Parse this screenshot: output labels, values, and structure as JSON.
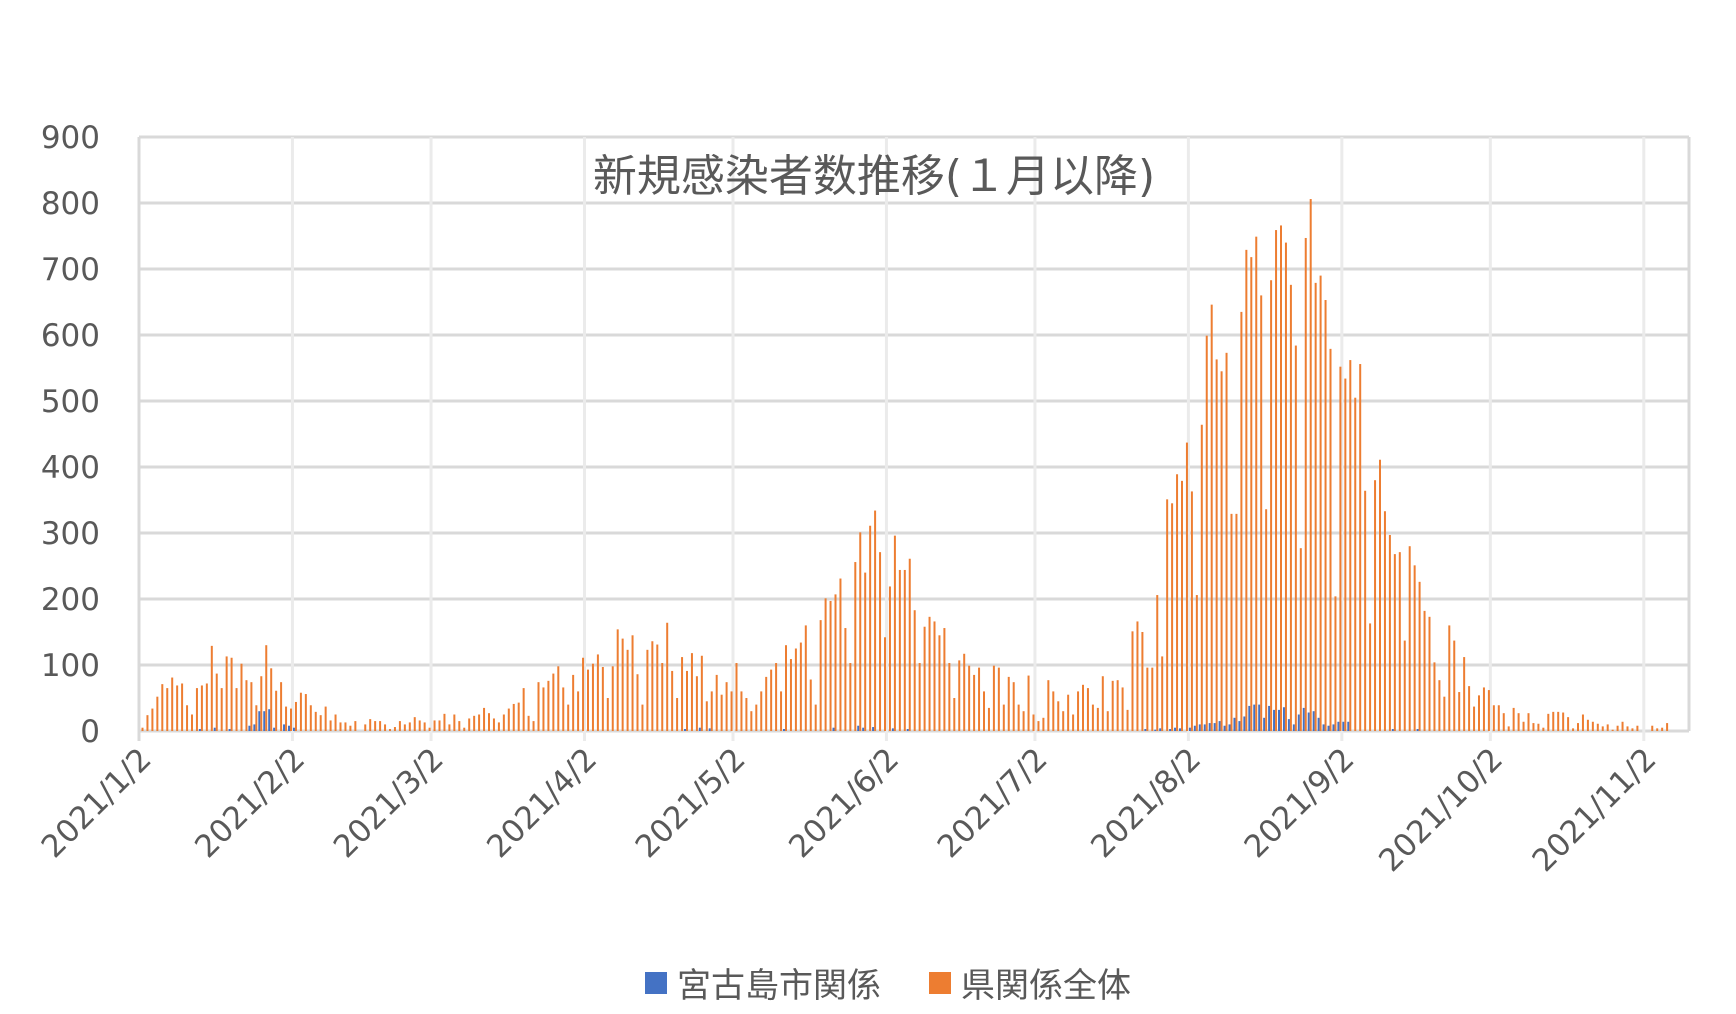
{
  "chart_data": {
    "type": "bar",
    "title": "新規感染者数推移(１月以降)",
    "xlabel": "",
    "ylabel": "",
    "ylim": [
      0,
      900
    ],
    "yticks": [
      0,
      100,
      200,
      300,
      400,
      500,
      600,
      700,
      800,
      900
    ],
    "xticks": [
      "2021/1/2",
      "2021/2/2",
      "2021/3/2",
      "2021/4/2",
      "2021/5/2",
      "2021/6/2",
      "2021/7/2",
      "2021/8/2",
      "2021/9/2",
      "2021/10/2",
      "2021/11/2"
    ],
    "grid": true,
    "legend": "bottom",
    "colors": {
      "series0": "#4472C4",
      "series1": "#ED7D31",
      "grid": "#D9D9D9",
      "text": "#595959"
    },
    "x": [
      "2021/1/2",
      "2021/1/3",
      "2021/1/4",
      "2021/1/5",
      "2021/1/6",
      "2021/1/7",
      "2021/1/8",
      "2021/1/9",
      "2021/1/10",
      "2021/1/11",
      "2021/1/12",
      "2021/1/13",
      "2021/1/14",
      "2021/1/15",
      "2021/1/16",
      "2021/1/17",
      "2021/1/18",
      "2021/1/19",
      "2021/1/20",
      "2021/1/21",
      "2021/1/22",
      "2021/1/23",
      "2021/1/24",
      "2021/1/25",
      "2021/1/26",
      "2021/1/27",
      "2021/1/28",
      "2021/1/29",
      "2021/1/30",
      "2021/1/31",
      "2021/2/1",
      "2021/2/2",
      "2021/2/3",
      "2021/2/4",
      "2021/2/5",
      "2021/2/6",
      "2021/2/7",
      "2021/2/8",
      "2021/2/9",
      "2021/2/10",
      "2021/2/11",
      "2021/2/12",
      "2021/2/13",
      "2021/2/14",
      "2021/2/15",
      "2021/2/16",
      "2021/2/17",
      "2021/2/18",
      "2021/2/19",
      "2021/2/20",
      "2021/2/21",
      "2021/2/22",
      "2021/2/23",
      "2021/2/24",
      "2021/2/25",
      "2021/2/26",
      "2021/2/27",
      "2021/2/28",
      "2021/3/1",
      "2021/3/2",
      "2021/3/3",
      "2021/3/4",
      "2021/3/5",
      "2021/3/6",
      "2021/3/7",
      "2021/3/8",
      "2021/3/9",
      "2021/3/10",
      "2021/3/11",
      "2021/3/12",
      "2021/3/13",
      "2021/3/14",
      "2021/3/15",
      "2021/3/16",
      "2021/3/17",
      "2021/3/18",
      "2021/3/19",
      "2021/3/20",
      "2021/3/21",
      "2021/3/22",
      "2021/3/23",
      "2021/3/24",
      "2021/3/25",
      "2021/3/26",
      "2021/3/27",
      "2021/3/28",
      "2021/3/29",
      "2021/3/30",
      "2021/3/31",
      "2021/4/1",
      "2021/4/2",
      "2021/4/3",
      "2021/4/4",
      "2021/4/5",
      "2021/4/6",
      "2021/4/7",
      "2021/4/8",
      "2021/4/9",
      "2021/4/10",
      "2021/4/11",
      "2021/4/12",
      "2021/4/13",
      "2021/4/14",
      "2021/4/15",
      "2021/4/16",
      "2021/4/17",
      "2021/4/18",
      "2021/4/19",
      "2021/4/20",
      "2021/4/21",
      "2021/4/22",
      "2021/4/23",
      "2021/4/24",
      "2021/4/25",
      "2021/4/26",
      "2021/4/27",
      "2021/4/28",
      "2021/4/29",
      "2021/4/30",
      "2021/5/1",
      "2021/5/2",
      "2021/5/3",
      "2021/5/4",
      "2021/5/5",
      "2021/5/6",
      "2021/5/7",
      "2021/5/8",
      "2021/5/9",
      "2021/5/10",
      "2021/5/11",
      "2021/5/12",
      "2021/5/13",
      "2021/5/14",
      "2021/5/15",
      "2021/5/16",
      "2021/5/17",
      "2021/5/18",
      "2021/5/19",
      "2021/5/20",
      "2021/5/21",
      "2021/5/22",
      "2021/5/23",
      "2021/5/24",
      "2021/5/25",
      "2021/5/26",
      "2021/5/27",
      "2021/5/28",
      "2021/5/29",
      "2021/5/30",
      "2021/5/31",
      "2021/6/1",
      "2021/6/2",
      "2021/6/3",
      "2021/6/4",
      "2021/6/5",
      "2021/6/6",
      "2021/6/7",
      "2021/6/8",
      "2021/6/9",
      "2021/6/10",
      "2021/6/11",
      "2021/6/12",
      "2021/6/13",
      "2021/6/14",
      "2021/6/15",
      "2021/6/16",
      "2021/6/17",
      "2021/6/18",
      "2021/6/19",
      "2021/6/20",
      "2021/6/21",
      "2021/6/22",
      "2021/6/23",
      "2021/6/24",
      "2021/6/25",
      "2021/6/26",
      "2021/6/27",
      "2021/6/28",
      "2021/6/29",
      "2021/6/30",
      "2021/7/1",
      "2021/7/2",
      "2021/7/3",
      "2021/7/4",
      "2021/7/5",
      "2021/7/6",
      "2021/7/7",
      "2021/7/8",
      "2021/7/9",
      "2021/7/10",
      "2021/7/11",
      "2021/7/12",
      "2021/7/13",
      "2021/7/14",
      "2021/7/15",
      "2021/7/16",
      "2021/7/17",
      "2021/7/18",
      "2021/7/19",
      "2021/7/20",
      "2021/7/21",
      "2021/7/22",
      "2021/7/23",
      "2021/7/24",
      "2021/7/25",
      "2021/7/26",
      "2021/7/27",
      "2021/7/28",
      "2021/7/29",
      "2021/7/30",
      "2021/7/31",
      "2021/8/1",
      "2021/8/2",
      "2021/8/3",
      "2021/8/4",
      "2021/8/5",
      "2021/8/6",
      "2021/8/7",
      "2021/8/8",
      "2021/8/9",
      "2021/8/10",
      "2021/8/11",
      "2021/8/12",
      "2021/8/13",
      "2021/8/14",
      "2021/8/15",
      "2021/8/16",
      "2021/8/17",
      "2021/8/18",
      "2021/8/19",
      "2021/8/20",
      "2021/8/21",
      "2021/8/22",
      "2021/8/23",
      "2021/8/24",
      "2021/8/25",
      "2021/8/26",
      "2021/8/27",
      "2021/8/28",
      "2021/8/29",
      "2021/8/30",
      "2021/8/31",
      "2021/9/1",
      "2021/9/2",
      "2021/9/3",
      "2021/9/4",
      "2021/9/5",
      "2021/9/6",
      "2021/9/7",
      "2021/9/8",
      "2021/9/9",
      "2021/9/10",
      "2021/9/11",
      "2021/9/12",
      "2021/9/13",
      "2021/9/14",
      "2021/9/15",
      "2021/9/16",
      "2021/9/17",
      "2021/9/18",
      "2021/9/19",
      "2021/9/20",
      "2021/9/21",
      "2021/9/22",
      "2021/9/23",
      "2021/9/24",
      "2021/9/25",
      "2021/9/26",
      "2021/9/27",
      "2021/9/28",
      "2021/9/29",
      "2021/9/30",
      "2021/10/1",
      "2021/10/2",
      "2021/10/3",
      "2021/10/4",
      "2021/10/5",
      "2021/10/6",
      "2021/10/7",
      "2021/10/8",
      "2021/10/9",
      "2021/10/10",
      "2021/10/11",
      "2021/10/12",
      "2021/10/13",
      "2021/10/14",
      "2021/10/15",
      "2021/10/16",
      "2021/10/17",
      "2021/10/18",
      "2021/10/19",
      "2021/10/20",
      "2021/10/21",
      "2021/10/22",
      "2021/10/23",
      "2021/10/24",
      "2021/10/25",
      "2021/10/26",
      "2021/10/27",
      "2021/10/28",
      "2021/10/29",
      "2021/10/30",
      "2021/10/31",
      "2021/11/1",
      "2021/11/2",
      "2021/11/3",
      "2021/11/4",
      "2021/11/5",
      "2021/11/6"
    ],
    "series": [
      {
        "name": "宮古島市関係",
        "values": [
          0,
          0,
          0,
          0,
          0,
          0,
          0,
          0,
          0,
          0,
          0,
          0,
          3,
          0,
          0,
          5,
          0,
          0,
          3,
          0,
          0,
          0,
          8,
          10,
          30,
          30,
          33,
          5,
          0,
          10,
          8,
          5,
          0,
          0,
          0,
          0,
          0,
          0,
          0,
          0,
          0,
          0,
          0,
          0,
          0,
          0,
          0,
          0,
          0,
          0,
          0,
          0,
          0,
          0,
          0,
          0,
          0,
          0,
          0,
          0,
          0,
          0,
          0,
          0,
          0,
          0,
          0,
          0,
          0,
          0,
          0,
          0,
          0,
          0,
          0,
          0,
          0,
          0,
          0,
          0,
          0,
          0,
          0,
          0,
          0,
          0,
          0,
          0,
          0,
          0,
          0,
          0,
          0,
          0,
          0,
          0,
          0,
          0,
          0,
          0,
          0,
          0,
          0,
          0,
          0,
          0,
          0,
          0,
          0,
          0,
          3,
          0,
          0,
          5,
          0,
          4,
          0,
          0,
          0,
          0,
          0,
          0,
          0,
          0,
          0,
          0,
          0,
          0,
          0,
          0,
          3,
          0,
          0,
          0,
          0,
          0,
          0,
          0,
          0,
          0,
          5,
          0,
          0,
          0,
          0,
          8,
          5,
          0,
          6,
          0,
          0,
          0,
          4,
          0,
          0,
          3,
          0,
          0,
          0,
          0,
          0,
          0,
          0,
          0,
          0,
          0,
          0,
          0,
          0,
          0,
          0,
          0,
          0,
          0,
          0,
          0,
          0,
          0,
          0,
          0,
          0,
          0,
          0,
          0,
          0,
          0,
          0,
          0,
          0,
          0,
          0,
          0,
          0,
          0,
          0,
          0,
          0,
          0,
          0,
          0,
          0,
          0,
          0,
          3,
          0,
          2,
          4,
          0,
          3,
          5,
          4,
          0,
          5,
          8,
          10,
          10,
          12,
          12,
          15,
          8,
          10,
          20,
          15,
          22,
          38,
          40,
          40,
          20,
          38,
          32,
          32,
          36,
          18,
          10,
          25,
          35,
          28,
          30,
          20,
          10,
          8,
          10,
          14,
          14,
          14,
          0,
          0,
          0,
          0,
          0,
          0,
          0,
          0,
          3,
          0,
          0,
          0,
          0,
          3,
          0,
          0,
          0,
          0,
          0,
          0,
          0,
          0,
          0,
          0,
          0,
          0,
          0,
          0,
          0,
          0,
          0,
          0,
          0,
          0,
          0,
          0,
          0,
          0,
          0,
          0,
          0,
          0,
          0,
          0,
          0,
          0,
          0,
          0,
          0,
          0,
          0,
          0,
          0,
          0,
          0,
          0,
          0,
          0,
          0,
          0,
          0,
          0,
          0,
          0
        ]
      },
      {
        "name": "県関係全体",
        "values": [
          5,
          24,
          34,
          52,
          71,
          65,
          81,
          69,
          72,
          39,
          25,
          65,
          69,
          72,
          129,
          87,
          65,
          113,
          111,
          65,
          102,
          77,
          74,
          39,
          83,
          130,
          95,
          61,
          74,
          37,
          34,
          44,
          58,
          56,
          39,
          29,
          24,
          37,
          16,
          25,
          13,
          13,
          8,
          15,
          0,
          10,
          18,
          15,
          15,
          10,
          3,
          6,
          15,
          10,
          13,
          21,
          16,
          13,
          5,
          16,
          16,
          26,
          10,
          25,
          15,
          5,
          19,
          23,
          25,
          35,
          27,
          19,
          13,
          25,
          34,
          41,
          43,
          65,
          23,
          15,
          74,
          66,
          76,
          87,
          98,
          66,
          40,
          85,
          60,
          111,
          93,
          102,
          116,
          97,
          50,
          98,
          154,
          140,
          123,
          145,
          86,
          40,
          123,
          136,
          131,
          103,
          164,
          91,
          50,
          112,
          91,
          118,
          83,
          114,
          45,
          60,
          85,
          55,
          74,
          60,
          103,
          60,
          50,
          30,
          40,
          60,
          82,
          93,
          103,
          60,
          130,
          109,
          125,
          134,
          160,
          78,
          40,
          168,
          201,
          197,
          207,
          231,
          156,
          103,
          256,
          301,
          240,
          311,
          334,
          271,
          142,
          219,
          296,
          244,
          244,
          261,
          183,
          103,
          158,
          173,
          166,
          145,
          156,
          103,
          50,
          107,
          117,
          99,
          85,
          96,
          60,
          35,
          99,
          96,
          40,
          82,
          74,
          40,
          30,
          84,
          25,
          15,
          20,
          77,
          60,
          45,
          30,
          55,
          25,
          60,
          70,
          65,
          40,
          35,
          83,
          30,
          76,
          77,
          66,
          32,
          151,
          166,
          150,
          96,
          96,
          206,
          113,
          351,
          345,
          389,
          379,
          437,
          363,
          206,
          464,
          599,
          646,
          563,
          545,
          573,
          329,
          329,
          635,
          729,
          718,
          749,
          660,
          336,
          683,
          759,
          766,
          740,
          676,
          584,
          277,
          747,
          806,
          679,
          690,
          653,
          579,
          204,
          552,
          534,
          562,
          505,
          556,
          364,
          163,
          380,
          411,
          333,
          297,
          268,
          271,
          137,
          280,
          251,
          226,
          182,
          173,
          104,
          77,
          52,
          160,
          137,
          59,
          112,
          68,
          37,
          54,
          66,
          62,
          39,
          39,
          27,
          7,
          35,
          27,
          14,
          27,
          12,
          11,
          5,
          26,
          29,
          29,
          28,
          21,
          4,
          12,
          25,
          17,
          14,
          11,
          7,
          10,
          2,
          8,
          14,
          7,
          4,
          8,
          0,
          0,
          8,
          4,
          5,
          12
        ]
      }
    ]
  }
}
